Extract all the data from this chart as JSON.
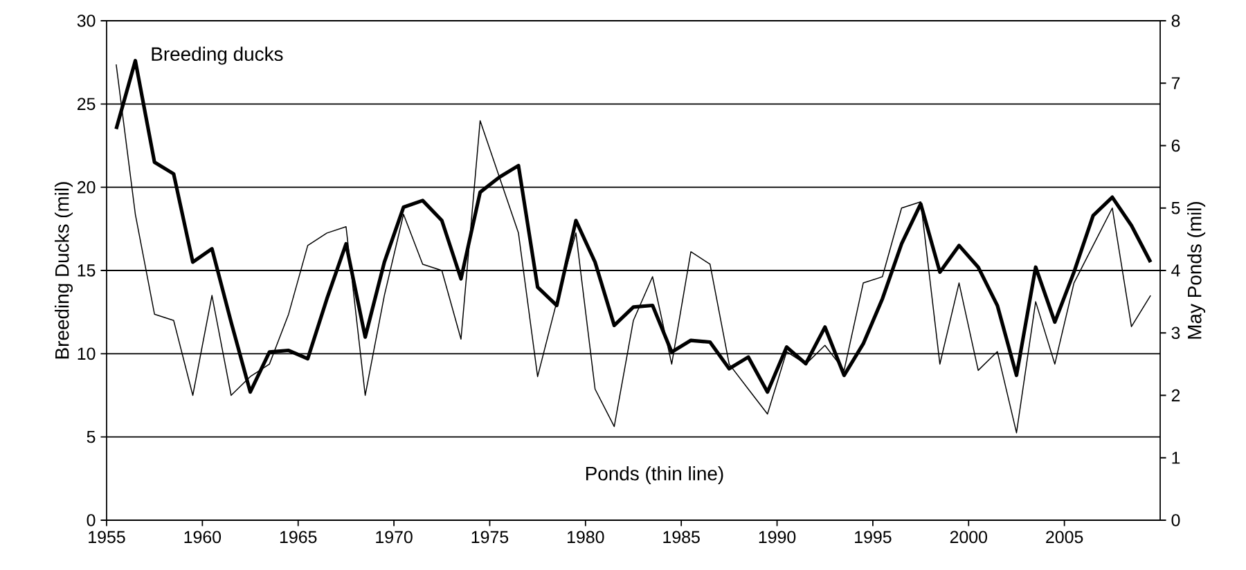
{
  "chart_data": {
    "type": "line",
    "ylabel": "Breeding Ducks (mil)",
    "y2label": "May Ponds (mil)",
    "x": [
      1955.5,
      1956.5,
      1957.5,
      1958.5,
      1959.5,
      1960.5,
      1961.5,
      1962.5,
      1963.5,
      1964.5,
      1965.5,
      1966.5,
      1967.5,
      1968.5,
      1969.5,
      1970.5,
      1971.5,
      1972.5,
      1973.5,
      1974.5,
      1975.5,
      1976.5,
      1977.5,
      1978.5,
      1979.5,
      1980.5,
      1981.5,
      1982.5,
      1983.5,
      1984.5,
      1985.5,
      1986.5,
      1987.5,
      1988.5,
      1989.5,
      1990.5,
      1991.5,
      1992.5,
      1993.5,
      1994.5,
      1995.5,
      1996.5,
      1997.5,
      1998.5,
      1999.5,
      2000.5,
      2001.5,
      2002.5,
      2003.5,
      2004.5,
      2005.5,
      2006.5,
      2007.5,
      2008.5,
      2009.5
    ],
    "series": [
      {
        "color": "#000000",
        "values": [
          23.5,
          27.6,
          21.5,
          20.8,
          15.5,
          16.3,
          11.9,
          7.7,
          10.1,
          10.2,
          9.7,
          13.3,
          16.6,
          11.0,
          15.5,
          18.8,
          19.2,
          18.0,
          14.5,
          19.7,
          20.6,
          21.3,
          14.0,
          12.9,
          18.0,
          15.5,
          11.7,
          12.8,
          12.9,
          10.1,
          10.8,
          10.7,
          9.1,
          9.8,
          7.7,
          10.4,
          9.4,
          11.6,
          8.7,
          10.6,
          13.3,
          16.6,
          19.0,
          14.9,
          16.5,
          15.2,
          12.9,
          8.7,
          15.2,
          11.9,
          14.9,
          18.3,
          19.4,
          17.7,
          15.5
        ]
      },
      {
        "color": "#000000",
        "axis": "y2",
        "values": [
          7.3,
          4.9,
          3.3,
          3.2,
          2.0,
          3.6,
          2.0,
          2.3,
          2.5,
          3.3,
          4.4,
          4.6,
          4.7,
          2.0,
          3.6,
          4.9,
          4.1,
          4.0,
          2.9,
          6.4,
          5.5,
          4.6,
          2.3,
          3.5,
          4.6,
          2.1,
          1.5,
          3.2,
          3.9,
          2.5,
          4.3,
          4.1,
          2.5,
          2.1,
          1.7,
          2.7,
          2.5,
          2.8,
          2.4,
          3.8,
          3.9,
          5.0,
          5.1,
          2.5,
          3.8,
          2.4,
          2.7,
          1.4,
          3.5,
          2.5,
          3.8,
          4.4,
          5.0,
          3.1,
          3.6
        ]
      }
    ],
    "xlim": [
      1955,
      2010
    ],
    "xticks": [
      1955,
      1960,
      1965,
      1970,
      1975,
      1980,
      1985,
      1990,
      1995,
      2000,
      2005
    ],
    "ylim": [
      0,
      30
    ],
    "yticks": [
      0,
      5,
      10,
      15,
      20,
      25,
      30
    ],
    "y2lim": [
      0,
      8
    ],
    "y2ticks": [
      0,
      1,
      2,
      3,
      4,
      5,
      6,
      7,
      8
    ],
    "grid": "y",
    "annotations": [
      "Breeding ducks",
      "Ponds (thin line)"
    ]
  }
}
